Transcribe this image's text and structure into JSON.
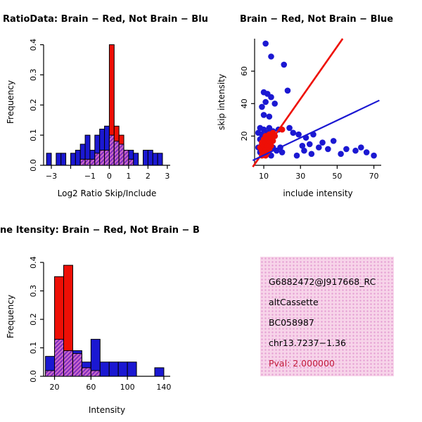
{
  "colors": {
    "red": "#ee0f06",
    "blue": "#1b18d2",
    "overlap_base": "#cf6bc9",
    "overlap_stripe": "#7d2bbf",
    "axis": "#000000",
    "pval": "#c21a3a",
    "info_bg": "#f7d4e9",
    "info_dot": "#e49fd3"
  },
  "info_box": {
    "lines": [
      "G6882472@J917668_RC",
      "altCassette",
      "BC058987",
      "chr13.7237−1.36"
    ],
    "pval_line": "Pval: 2.000000"
  },
  "chart_data": [
    {
      "type": "bar",
      "subtype": "overlaid-histogram",
      "panel": "ratio_hist",
      "title": "RatioData: Brain − Red, Not Brain − Blu",
      "xlabel": "Log2 Ratio Skip/Include",
      "ylabel": "Frequency",
      "xlim": [
        -3.4,
        3.15
      ],
      "ylim": [
        0,
        0.42
      ],
      "x_ticks": [
        -3,
        -2,
        -1,
        0,
        1,
        2,
        3
      ],
      "x_tick_labels": [
        "−3",
        "",
        "−1",
        "0",
        "1",
        "2",
        "3"
      ],
      "y_ticks": [
        0,
        0.1,
        0.2,
        0.3,
        0.4
      ],
      "y_tick_labels": [
        "0.0",
        "0.1",
        "0.2",
        "0.3",
        "0.4"
      ],
      "bin_start": -3.25,
      "bin_width": 0.25,
      "grid": false,
      "series": [
        {
          "name": "Not Brain",
          "color_key": "blue",
          "values": [
            0.04,
            0,
            0.04,
            0.04,
            0,
            0.04,
            0.05,
            0.07,
            0.1,
            0.05,
            0.1,
            0.12,
            0.13,
            0.1,
            0.08,
            0.07,
            0.05,
            0.05,
            0.04,
            0,
            0.05,
            0.05,
            0.04,
            0.04,
            0
          ]
        },
        {
          "name": "Brain",
          "color_key": "red",
          "values": [
            0,
            0,
            0,
            0,
            0,
            0,
            0,
            0.02,
            0.02,
            0.02,
            0.04,
            0.05,
            0.05,
            0.4,
            0.13,
            0.1,
            0.05,
            0.02,
            0,
            0,
            0,
            0,
            0,
            0,
            0
          ]
        }
      ]
    },
    {
      "type": "scatter",
      "panel": "scatter",
      "title": "Brain − Red, Not Brain − Blue",
      "xlabel": "include intensity",
      "ylabel": "skip intensity",
      "xlim": [
        5,
        74
      ],
      "ylim": [
        2,
        80
      ],
      "x_ticks": [
        10,
        30,
        50,
        70
      ],
      "x_tick_labels": [
        "10",
        "30",
        "50",
        "70"
      ],
      "y_ticks": [
        20,
        40,
        60
      ],
      "y_tick_labels": [
        "20",
        "40",
        "60"
      ],
      "grid": false,
      "series": [
        {
          "name": "Not Brain",
          "color_key": "blue",
          "points": [
            [
              11,
              77
            ],
            [
              14,
              69
            ],
            [
              21,
              64
            ],
            [
              10,
              47
            ],
            [
              12,
              46
            ],
            [
              14,
              44
            ],
            [
              11,
              41
            ],
            [
              16,
              40
            ],
            [
              9,
              38
            ],
            [
              23,
              48
            ],
            [
              10,
              33
            ],
            [
              13,
              32
            ],
            [
              24,
              25
            ],
            [
              26,
              22
            ],
            [
              29,
              21
            ],
            [
              33,
              19
            ],
            [
              37,
              21
            ],
            [
              31,
              14
            ],
            [
              35,
              15
            ],
            [
              40,
              13
            ],
            [
              42,
              16
            ],
            [
              45,
              12
            ],
            [
              48,
              17
            ],
            [
              52,
              9
            ],
            [
              55,
              12
            ],
            [
              60,
              11
            ],
            [
              63,
              13
            ],
            [
              66,
              10
            ],
            [
              70,
              8
            ],
            [
              28,
              8
            ],
            [
              32,
              11
            ],
            [
              36,
              9
            ],
            [
              7,
              22
            ],
            [
              8,
              18
            ],
            [
              8,
              25
            ],
            [
              9,
              21
            ],
            [
              10,
              24
            ],
            [
              12,
              22
            ],
            [
              13,
              25
            ],
            [
              15,
              23
            ],
            [
              16,
              20
            ],
            [
              18,
              24
            ],
            [
              7,
              13
            ],
            [
              8,
              10
            ],
            [
              9,
              15
            ],
            [
              10,
              12
            ],
            [
              11,
              9
            ],
            [
              12,
              14
            ],
            [
              13,
              11
            ],
            [
              14,
              8
            ],
            [
              15,
              13
            ],
            [
              17,
              11
            ],
            [
              19,
              13
            ],
            [
              20,
              10
            ]
          ]
        },
        {
          "name": "Brain",
          "color_key": "red",
          "points": [
            [
              8,
              13
            ],
            [
              9,
              11
            ],
            [
              9,
              16
            ],
            [
              10,
              10
            ],
            [
              10,
              14
            ],
            [
              10,
              18
            ],
            [
              11,
              12
            ],
            [
              11,
              16
            ],
            [
              11,
              20
            ],
            [
              12,
              10
            ],
            [
              12,
              14
            ],
            [
              12,
              18
            ],
            [
              13,
              12
            ],
            [
              13,
              16
            ],
            [
              13,
              21
            ],
            [
              14,
              14
            ],
            [
              14,
              19
            ],
            [
              15,
              17
            ],
            [
              15,
              22
            ],
            [
              16,
              20
            ],
            [
              9,
              8
            ],
            [
              11,
              8
            ],
            [
              20,
              24
            ]
          ]
        }
      ],
      "lines": [
        {
          "name": "brain-fit-line",
          "color_key": "red",
          "from": [
            4,
            1
          ],
          "to": [
            53,
            80
          ],
          "width": 2.6
        },
        {
          "name": "notbrain-fit-line",
          "color_key": "blue",
          "from": [
            4,
            5
          ],
          "to": [
            73,
            42
          ],
          "width": 2.2
        }
      ]
    },
    {
      "type": "bar",
      "subtype": "overlaid-histogram",
      "panel": "intensity_hist",
      "title": "ne Itensity: Brain − Red, Not Brain − B",
      "xlabel": "Intensity",
      "ylabel": "Frequency",
      "xlim": [
        8,
        147
      ],
      "ylim": [
        0,
        0.42
      ],
      "x_ticks": [
        20,
        60,
        100,
        140
      ],
      "x_tick_labels": [
        "20",
        "60",
        "100",
        "140"
      ],
      "y_ticks": [
        0,
        0.1,
        0.2,
        0.3,
        0.4
      ],
      "y_tick_labels": [
        "0.0",
        "0.1",
        "0.2",
        "0.3",
        "0.4"
      ],
      "bin_start": 10,
      "bin_width": 10,
      "grid": false,
      "series": [
        {
          "name": "Not Brain",
          "color_key": "blue",
          "values": [
            0.07,
            0.13,
            0.09,
            0.09,
            0.05,
            0.13,
            0.05,
            0.05,
            0.05,
            0.05,
            0,
            0,
            0.03
          ]
        },
        {
          "name": "Brain",
          "color_key": "red",
          "values": [
            0.02,
            0.35,
            0.39,
            0.08,
            0.03,
            0.02,
            0,
            0,
            0,
            0,
            0,
            0,
            0
          ]
        }
      ]
    }
  ]
}
